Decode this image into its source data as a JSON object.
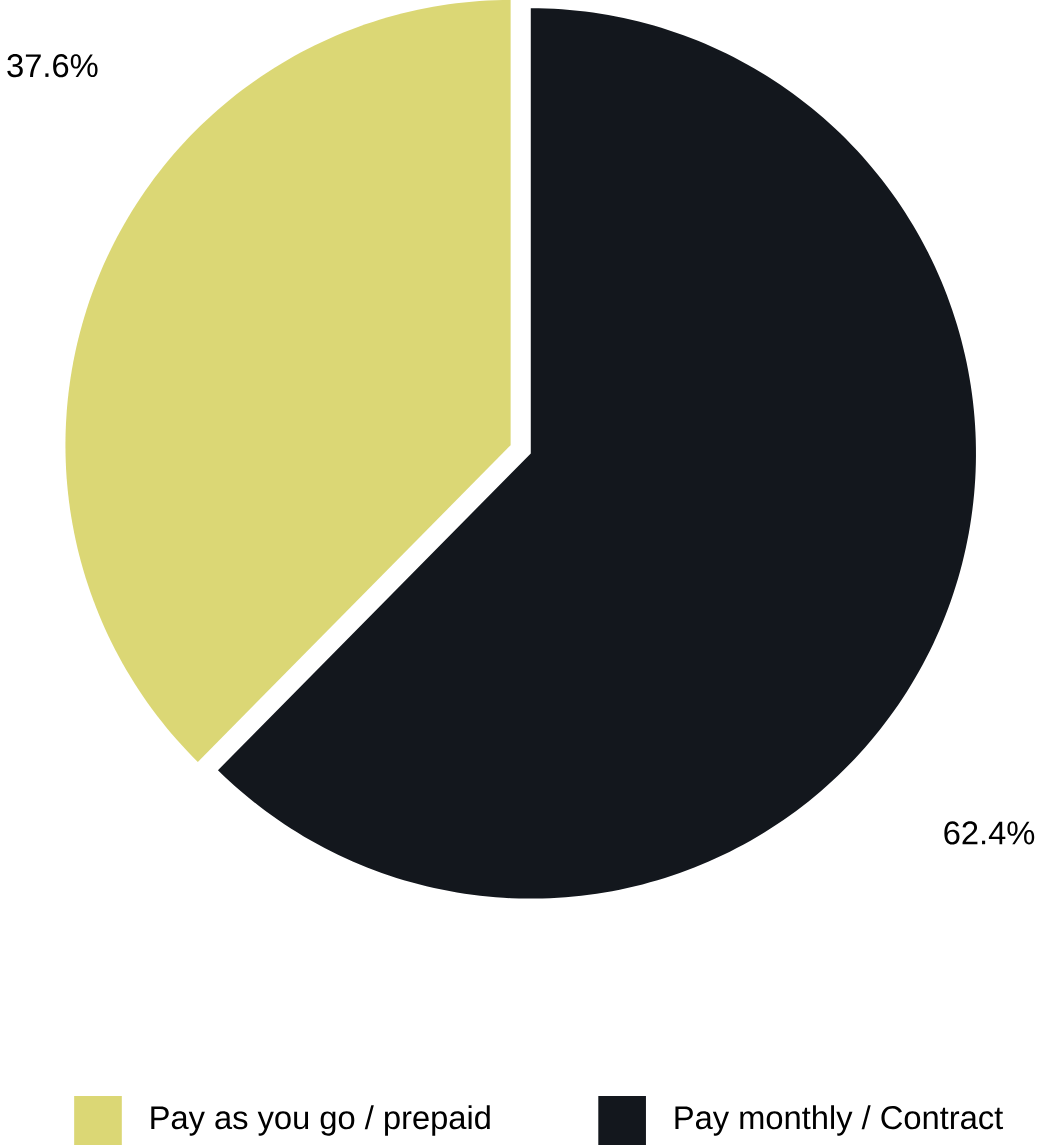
{
  "chart_data": {
    "type": "pie",
    "categories": [
      "Pay as you go / prepaid",
      "Pay monthly / Contract"
    ],
    "values": [
      37.6,
      62.4
    ],
    "colors": [
      "#dbd775",
      "#13171d"
    ],
    "value_labels": [
      "37.6%",
      "62.4%"
    ],
    "legend": "bottom"
  }
}
